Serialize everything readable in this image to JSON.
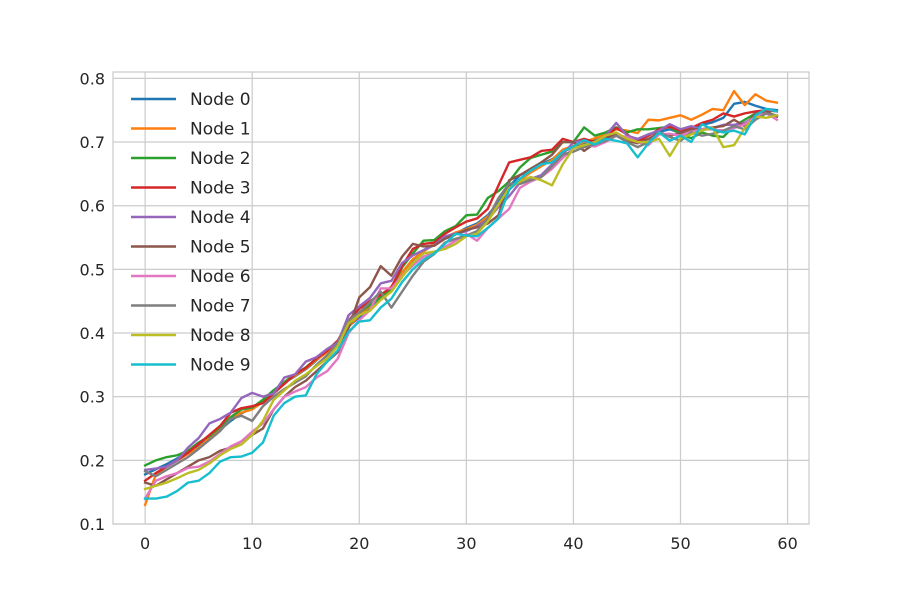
{
  "chart_data": {
    "type": "line",
    "title": "",
    "xlabel": "",
    "ylabel": "",
    "xlim": [
      -3,
      62
    ],
    "ylim": [
      0.1,
      0.81
    ],
    "grid": true,
    "legend_placement": "upper-left",
    "x_ticks": [
      0,
      10,
      20,
      30,
      40,
      50,
      60
    ],
    "y_ticks": [
      0.1,
      0.2,
      0.3,
      0.4,
      0.5,
      0.6,
      0.7,
      0.8
    ],
    "x_tick_labels": [
      "0",
      "10",
      "20",
      "30",
      "40",
      "50",
      "60"
    ],
    "y_tick_labels": [
      "0.1",
      "0.2",
      "0.3",
      "0.4",
      "0.5",
      "0.6",
      "0.7",
      "0.8"
    ],
    "x": [
      0,
      1,
      2,
      3,
      4,
      5,
      6,
      7,
      8,
      9,
      10,
      11,
      12,
      13,
      14,
      15,
      16,
      17,
      18,
      19,
      20,
      21,
      22,
      23,
      24,
      25,
      26,
      27,
      28,
      29,
      30,
      31,
      32,
      33,
      34,
      35,
      36,
      37,
      38,
      39,
      40,
      41,
      42,
      43,
      44,
      45,
      46,
      47,
      48,
      49,
      50,
      51,
      52,
      53,
      54,
      55,
      56,
      57,
      58,
      59
    ],
    "series": [
      {
        "name": "Node 0",
        "color": "#1f77b4",
        "values": [
          0.178,
          0.186,
          0.194,
          0.203,
          0.213,
          0.224,
          0.236,
          0.248,
          0.262,
          0.274,
          0.282,
          0.295,
          0.31,
          0.322,
          0.332,
          0.343,
          0.357,
          0.372,
          0.386,
          0.41,
          0.425,
          0.44,
          0.455,
          0.47,
          0.495,
          0.515,
          0.53,
          0.54,
          0.548,
          0.556,
          0.565,
          0.572,
          0.585,
          0.605,
          0.63,
          0.648,
          0.656,
          0.665,
          0.673,
          0.685,
          0.692,
          0.698,
          0.703,
          0.708,
          0.712,
          0.706,
          0.702,
          0.712,
          0.716,
          0.72,
          0.714,
          0.721,
          0.727,
          0.731,
          0.738,
          0.76,
          0.763,
          0.757,
          0.752,
          0.75
        ]
      },
      {
        "name": "Node 1",
        "color": "#ff7f0e",
        "values": [
          0.13,
          0.178,
          0.19,
          0.2,
          0.21,
          0.22,
          0.235,
          0.25,
          0.265,
          0.275,
          0.28,
          0.292,
          0.308,
          0.322,
          0.333,
          0.344,
          0.358,
          0.37,
          0.385,
          0.41,
          0.428,
          0.442,
          0.458,
          0.473,
          0.495,
          0.516,
          0.528,
          0.54,
          0.55,
          0.558,
          0.563,
          0.57,
          0.583,
          0.6,
          0.625,
          0.64,
          0.652,
          0.662,
          0.672,
          0.688,
          0.694,
          0.7,
          0.706,
          0.712,
          0.72,
          0.718,
          0.714,
          0.735,
          0.734,
          0.738,
          0.742,
          0.735,
          0.743,
          0.752,
          0.75,
          0.78,
          0.758,
          0.775,
          0.765,
          0.762
        ]
      },
      {
        "name": "Node 2",
        "color": "#2ca02c",
        "values": [
          0.192,
          0.2,
          0.205,
          0.208,
          0.215,
          0.228,
          0.238,
          0.252,
          0.268,
          0.28,
          0.283,
          0.295,
          0.31,
          0.323,
          0.335,
          0.346,
          0.36,
          0.373,
          0.388,
          0.412,
          0.432,
          0.444,
          0.456,
          0.47,
          0.503,
          0.525,
          0.545,
          0.546,
          0.56,
          0.568,
          0.585,
          0.586,
          0.612,
          0.623,
          0.638,
          0.66,
          0.675,
          0.68,
          0.685,
          0.7,
          0.7,
          0.723,
          0.71,
          0.715,
          0.723,
          0.715,
          0.72,
          0.72,
          0.722,
          0.724,
          0.712,
          0.706,
          0.715,
          0.71,
          0.708,
          0.725,
          0.735,
          0.745,
          0.748,
          0.74
        ]
      },
      {
        "name": "Node 3",
        "color": "#d62728",
        "values": [
          0.168,
          0.18,
          0.19,
          0.2,
          0.212,
          0.226,
          0.24,
          0.254,
          0.275,
          0.282,
          0.285,
          0.29,
          0.305,
          0.32,
          0.335,
          0.345,
          0.36,
          0.372,
          0.388,
          0.42,
          0.438,
          0.45,
          0.46,
          0.472,
          0.505,
          0.532,
          0.54,
          0.542,
          0.556,
          0.566,
          0.575,
          0.58,
          0.595,
          0.632,
          0.668,
          0.672,
          0.676,
          0.686,
          0.688,
          0.705,
          0.7,
          0.705,
          0.7,
          0.708,
          0.722,
          0.712,
          0.7,
          0.71,
          0.72,
          0.724,
          0.718,
          0.722,
          0.73,
          0.735,
          0.745,
          0.74,
          0.745,
          0.748,
          0.75,
          0.748
        ]
      },
      {
        "name": "Node 4",
        "color": "#9467bd",
        "values": [
          0.185,
          0.187,
          0.19,
          0.2,
          0.22,
          0.235,
          0.258,
          0.265,
          0.275,
          0.298,
          0.306,
          0.3,
          0.305,
          0.33,
          0.335,
          0.355,
          0.362,
          0.375,
          0.385,
          0.428,
          0.442,
          0.455,
          0.478,
          0.482,
          0.51,
          0.522,
          0.53,
          0.538,
          0.552,
          0.556,
          0.56,
          0.568,
          0.578,
          0.598,
          0.615,
          0.636,
          0.642,
          0.648,
          0.665,
          0.68,
          0.7,
          0.702,
          0.694,
          0.71,
          0.73,
          0.71,
          0.705,
          0.712,
          0.718,
          0.728,
          0.72,
          0.725,
          0.72,
          0.722,
          0.727,
          0.727,
          0.73,
          0.74,
          0.745,
          0.74
        ]
      },
      {
        "name": "Node 5",
        "color": "#8c564b",
        "values": [
          0.165,
          0.16,
          0.17,
          0.18,
          0.19,
          0.2,
          0.205,
          0.215,
          0.22,
          0.23,
          0.24,
          0.25,
          0.28,
          0.3,
          0.315,
          0.325,
          0.34,
          0.355,
          0.37,
          0.408,
          0.456,
          0.472,
          0.505,
          0.49,
          0.52,
          0.54,
          0.536,
          0.537,
          0.548,
          0.555,
          0.562,
          0.566,
          0.572,
          0.585,
          0.64,
          0.648,
          0.658,
          0.668,
          0.68,
          0.7,
          0.7,
          0.686,
          0.698,
          0.705,
          0.712,
          0.702,
          0.698,
          0.705,
          0.715,
          0.71,
          0.714,
          0.72,
          0.72,
          0.723,
          0.725,
          0.735,
          0.725,
          0.745,
          0.748,
          0.74
        ]
      },
      {
        "name": "Node 6",
        "color": "#e377c2",
        "values": [
          0.14,
          0.168,
          0.175,
          0.18,
          0.188,
          0.19,
          0.198,
          0.21,
          0.222,
          0.23,
          0.245,
          0.258,
          0.28,
          0.3,
          0.308,
          0.315,
          0.33,
          0.34,
          0.36,
          0.4,
          0.42,
          0.436,
          0.47,
          0.47,
          0.49,
          0.506,
          0.52,
          0.526,
          0.535,
          0.545,
          0.556,
          0.545,
          0.565,
          0.58,
          0.595,
          0.628,
          0.638,
          0.645,
          0.658,
          0.675,
          0.69,
          0.695,
          0.693,
          0.7,
          0.71,
          0.708,
          0.7,
          0.695,
          0.712,
          0.713,
          0.71,
          0.716,
          0.72,
          0.72,
          0.718,
          0.722,
          0.728,
          0.74,
          0.745,
          0.735
        ]
      },
      {
        "name": "Node 7",
        "color": "#7f7f7f",
        "values": [
          0.183,
          0.175,
          0.185,
          0.195,
          0.205,
          0.218,
          0.232,
          0.246,
          0.265,
          0.27,
          0.262,
          0.285,
          0.3,
          0.312,
          0.322,
          0.332,
          0.35,
          0.365,
          0.383,
          0.42,
          0.432,
          0.448,
          0.465,
          0.44,
          0.465,
          0.49,
          0.512,
          0.524,
          0.542,
          0.548,
          0.553,
          0.56,
          0.58,
          0.612,
          0.635,
          0.634,
          0.64,
          0.645,
          0.662,
          0.68,
          0.685,
          0.692,
          0.696,
          0.702,
          0.71,
          0.7,
          0.692,
          0.7,
          0.715,
          0.708,
          0.702,
          0.715,
          0.71,
          0.713,
          0.718,
          0.725,
          0.72,
          0.735,
          0.745,
          0.742
        ]
      },
      {
        "name": "Node 8",
        "color": "#bcbd22",
        "values": [
          0.155,
          0.16,
          0.165,
          0.172,
          0.18,
          0.185,
          0.195,
          0.208,
          0.218,
          0.225,
          0.24,
          0.262,
          0.295,
          0.31,
          0.325,
          0.335,
          0.348,
          0.36,
          0.38,
          0.415,
          0.428,
          0.435,
          0.452,
          0.465,
          0.488,
          0.51,
          0.525,
          0.528,
          0.532,
          0.54,
          0.552,
          0.556,
          0.575,
          0.602,
          0.628,
          0.638,
          0.645,
          0.64,
          0.632,
          0.665,
          0.69,
          0.695,
          0.7,
          0.71,
          0.715,
          0.705,
          0.7,
          0.7,
          0.705,
          0.678,
          0.706,
          0.712,
          0.718,
          0.722,
          0.692,
          0.695,
          0.722,
          0.74,
          0.738,
          0.742
        ]
      },
      {
        "name": "Node 9",
        "color": "#17becf",
        "values": [
          0.14,
          0.14,
          0.143,
          0.152,
          0.165,
          0.168,
          0.18,
          0.198,
          0.205,
          0.206,
          0.212,
          0.228,
          0.27,
          0.29,
          0.3,
          0.302,
          0.335,
          0.355,
          0.373,
          0.402,
          0.418,
          0.42,
          0.44,
          0.454,
          0.48,
          0.5,
          0.515,
          0.525,
          0.54,
          0.556,
          0.553,
          0.552,
          0.565,
          0.58,
          0.625,
          0.642,
          0.655,
          0.665,
          0.668,
          0.685,
          0.693,
          0.703,
          0.696,
          0.705,
          0.702,
          0.698,
          0.676,
          0.698,
          0.715,
          0.702,
          0.71,
          0.7,
          0.728,
          0.72,
          0.715,
          0.718,
          0.712,
          0.742,
          0.752,
          0.748
        ]
      }
    ]
  }
}
